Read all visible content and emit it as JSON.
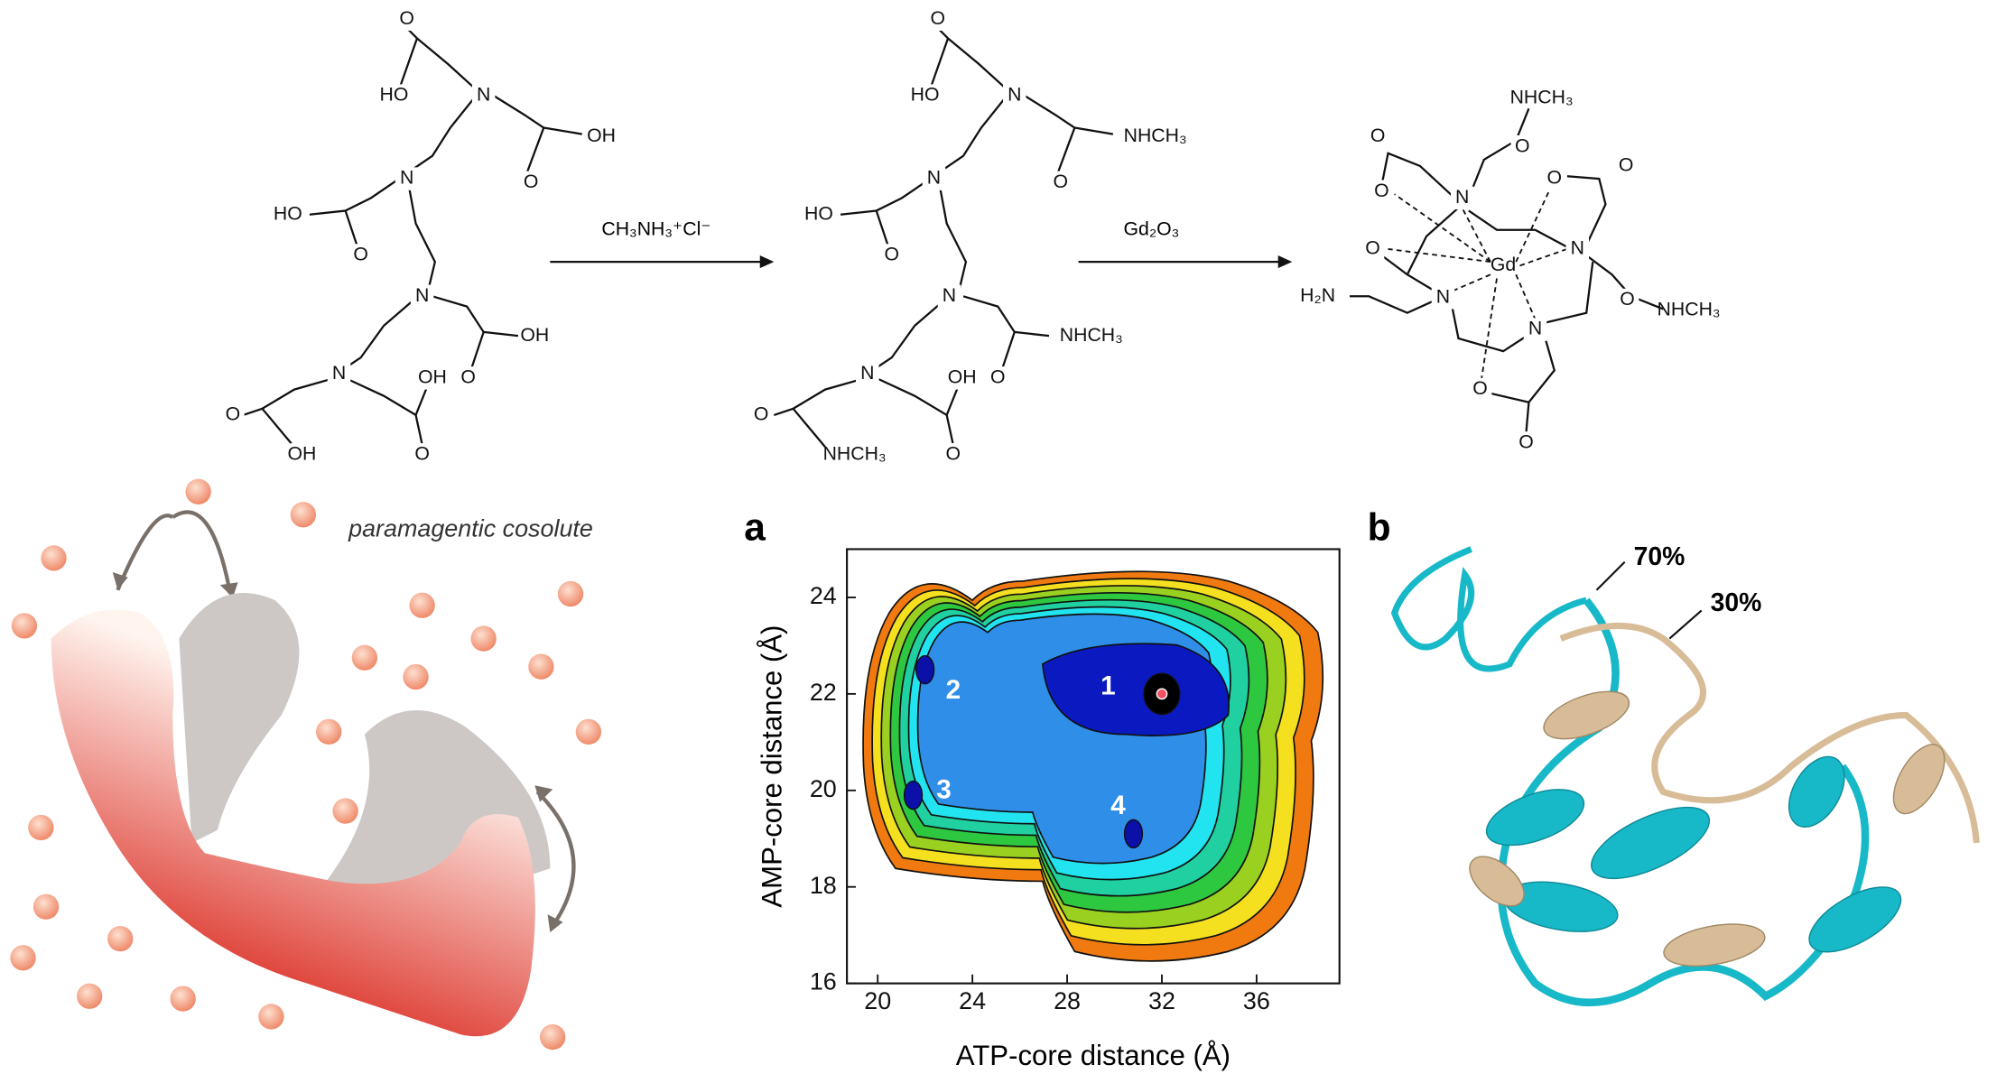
{
  "scheme": {
    "molecule1": [
      "O",
      "HO",
      "N",
      "OH",
      "O",
      "N",
      "HO",
      "O",
      "N",
      "OH",
      "O",
      "N",
      "OH",
      "O",
      "OH",
      "O"
    ],
    "reagent1": "CH₃NH₃⁺Cl⁻",
    "molecule2": [
      "O",
      "HO",
      "N",
      "NHCH₃",
      "O",
      "N",
      "HO",
      "O",
      "N",
      "NHCH₃",
      "O",
      "N",
      "OH",
      "O",
      "NHCH₃",
      "O"
    ],
    "reagent2": "Gd₂O₃",
    "molecule3": [
      "NHCH₃",
      "O",
      "O",
      "O",
      "O",
      "N",
      "O",
      "O",
      "Gd",
      "N",
      "H₂N",
      "N",
      "O",
      "NHCH₃",
      "N",
      "O",
      "O"
    ]
  },
  "illustration": {
    "label": "paramagentic cosolute"
  },
  "chart_data": {
    "type": "contour",
    "panel_label": "a",
    "xlabel": "ATP-core distance (Å)",
    "ylabel": "AMP-core distance (Å)",
    "xlim": [
      18.7,
      39.5
    ],
    "ylim": [
      16,
      25
    ],
    "xticks": [
      20,
      24,
      28,
      32,
      36
    ],
    "yticks": [
      16,
      18,
      20,
      22,
      24
    ],
    "minima": [
      {
        "label": "1",
        "x": 32,
        "y": 22
      },
      {
        "label": "2",
        "x": 22,
        "y": 22.5
      },
      {
        "label": "3",
        "x": 21.5,
        "y": 19.9
      },
      {
        "label": "4",
        "x": 30.8,
        "y": 19.1
      }
    ]
  },
  "structure": {
    "panel_label": "b",
    "annotations": [
      "70%",
      "30%"
    ]
  }
}
